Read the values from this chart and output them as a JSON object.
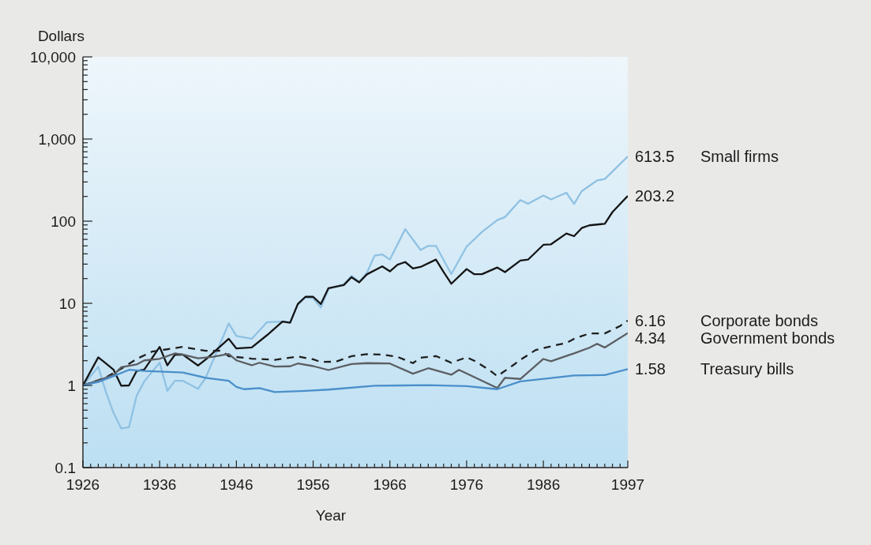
{
  "chart_data": {
    "type": "line",
    "xlabel": "Year",
    "ylabel": "Dollars",
    "log": "y",
    "xlim": [
      1926,
      1997
    ],
    "ylim": [
      0.1,
      10000
    ],
    "xticks": [
      1926,
      {
        "value": 1927,
        "label": null
      },
      {
        "value": 1928,
        "label": null
      },
      {
        "value": 1929,
        "label": null
      },
      {
        "value": 1930,
        "label": null
      },
      {
        "value": 1931,
        "label": null
      },
      {
        "value": 1932,
        "label": null
      },
      {
        "value": 1933,
        "label": null
      },
      {
        "value": 1934,
        "label": null
      },
      {
        "value": 1935,
        "label": null
      },
      1936,
      {
        "value": 1937,
        "label": null
      },
      {
        "value": 1938,
        "label": null
      },
      {
        "value": 1939,
        "label": null
      },
      {
        "value": 1940,
        "label": null
      },
      {
        "value": 1941,
        "label": null
      },
      {
        "value": 1942,
        "label": null
      },
      {
        "value": 1943,
        "label": null
      },
      {
        "value": 1944,
        "label": null
      },
      {
        "value": 1945,
        "label": null
      },
      1946,
      {
        "value": 1947,
        "label": null
      },
      {
        "value": 1948,
        "label": null
      },
      {
        "value": 1949,
        "label": null
      },
      {
        "value": 1950,
        "label": null
      },
      {
        "value": 1951,
        "label": null
      },
      {
        "value": 1952,
        "label": null
      },
      {
        "value": 1953,
        "label": null
      },
      {
        "value": 1954,
        "label": null
      },
      {
        "value": 1955,
        "label": null
      },
      1956,
      {
        "value": 1957,
        "label": null
      },
      {
        "value": 1958,
        "label": null
      },
      {
        "value": 1959,
        "label": null
      },
      {
        "value": 1960,
        "label": null
      },
      {
        "value": 1961,
        "label": null
      },
      {
        "value": 1962,
        "label": null
      },
      {
        "value": 1963,
        "label": null
      },
      {
        "value": 1964,
        "label": null
      },
      {
        "value": 1965,
        "label": null
      },
      1966,
      {
        "value": 1967,
        "label": null
      },
      {
        "value": 1968,
        "label": null
      },
      {
        "value": 1969,
        "label": null
      },
      {
        "value": 1970,
        "label": null
      },
      {
        "value": 1971,
        "label": null
      },
      {
        "value": 1972,
        "label": null
      },
      {
        "value": 1973,
        "label": null
      },
      {
        "value": 1974,
        "label": null
      },
      {
        "value": 1975,
        "label": null
      },
      1976,
      {
        "value": 1977,
        "label": null
      },
      {
        "value": 1978,
        "label": null
      },
      {
        "value": 1979,
        "label": null
      },
      {
        "value": 1980,
        "label": null
      },
      {
        "value": 1981,
        "label": null
      },
      {
        "value": 1982,
        "label": null
      },
      {
        "value": 1983,
        "label": null
      },
      {
        "value": 1984,
        "label": null
      },
      {
        "value": 1985,
        "label": null
      },
      1986,
      {
        "value": 1987,
        "label": null
      },
      {
        "value": 1988,
        "label": null
      },
      {
        "value": 1989,
        "label": null
      },
      {
        "value": 1990,
        "label": null
      },
      {
        "value": 1991,
        "label": null
      },
      {
        "value": 1992,
        "label": null
      },
      {
        "value": 1993,
        "label": null
      },
      {
        "value": 1994,
        "label": null
      },
      {
        "value": 1995,
        "label": null
      },
      {
        "value": 1996,
        "label": null
      },
      1997
    ],
    "yticks": [
      0.1,
      {
        "value": 0.2,
        "label": null
      },
      {
        "value": 0.3,
        "label": null
      },
      {
        "value": 0.4,
        "label": null
      },
      {
        "value": 0.5,
        "label": null
      },
      {
        "value": 0.6,
        "label": null
      },
      {
        "value": 0.7,
        "label": null
      },
      {
        "value": 0.8,
        "label": null
      },
      {
        "value": 0.9,
        "label": null
      },
      1,
      {
        "value": 2,
        "label": null
      },
      {
        "value": 3,
        "label": null
      },
      {
        "value": 4,
        "label": null
      },
      {
        "value": 5,
        "label": null
      },
      {
        "value": 6,
        "label": null
      },
      {
        "value": 7,
        "label": null
      },
      {
        "value": 8,
        "label": null
      },
      {
        "value": 9,
        "label": null
      },
      10,
      {
        "value": 20,
        "label": null
      },
      {
        "value": 30,
        "label": null
      },
      {
        "value": 40,
        "label": null
      },
      {
        "value": 50,
        "label": null
      },
      {
        "value": 60,
        "label": null
      },
      {
        "value": 70,
        "label": null
      },
      {
        "value": 80,
        "label": null
      },
      {
        "value": 90,
        "label": null
      },
      100,
      {
        "value": 200,
        "label": null
      },
      {
        "value": 300,
        "label": null
      },
      {
        "value": 400,
        "label": null
      },
      {
        "value": 500,
        "label": null
      },
      {
        "value": 600,
        "label": null
      },
      {
        "value": 700,
        "label": null
      },
      {
        "value": 800,
        "label": null
      },
      {
        "value": 900,
        "label": null
      },
      {
        "value": 1000,
        "label": "1,000"
      },
      {
        "value": 2000,
        "label": null
      },
      {
        "value": 3000,
        "label": null
      },
      {
        "value": 4000,
        "label": null
      },
      {
        "value": 5000,
        "label": null
      },
      {
        "value": 6000,
        "label": null
      },
      {
        "value": 7000,
        "label": null
      },
      {
        "value": 8000,
        "label": null
      },
      {
        "value": 9000,
        "label": null
      },
      {
        "value": 10000,
        "label": "10,000"
      }
    ],
    "series": [
      {
        "name": "Small firms",
        "color": "#8fc1e3",
        "line_style": "solid",
        "x": [
          1926,
          1928,
          1929,
          1930,
          1931,
          1932,
          1933,
          1934,
          1936,
          1937,
          1938,
          1939,
          1941,
          1942,
          1945,
          1946,
          1948,
          1950,
          1952,
          1953,
          1954,
          1955,
          1956,
          1957,
          1958,
          1960,
          1961,
          1962,
          1963,
          1964,
          1965,
          1966,
          1968,
          1970,
          1971,
          1972,
          1974,
          1976,
          1978,
          1980,
          1981,
          1983,
          1984,
          1986,
          1987,
          1989,
          1990,
          1991,
          1993,
          1994,
          1997
        ],
        "values": [
          1,
          1.69,
          0.83,
          0.46,
          0.3,
          0.31,
          0.75,
          1.12,
          1.9,
          0.86,
          1.14,
          1.14,
          0.91,
          1.24,
          5.7,
          4.0,
          3.7,
          5.9,
          6.0,
          5.9,
          9.6,
          11.8,
          11.5,
          8.9,
          15,
          17.1,
          21.6,
          18.3,
          23.4,
          38,
          39.4,
          34.1,
          80,
          44.6,
          50,
          50,
          22.7,
          49,
          74,
          103,
          112,
          181,
          163,
          205,
          184,
          222,
          162,
          232,
          313,
          326,
          613.5
        ],
        "value_labels": [
          null,
          null,
          null,
          null,
          null,
          null,
          null,
          null,
          null,
          null,
          null,
          null,
          null,
          null,
          null,
          null,
          null,
          null,
          null,
          null,
          null,
          null,
          null,
          null,
          null,
          null,
          null,
          null,
          null,
          null,
          null,
          null,
          null,
          null,
          null,
          null,
          null,
          null,
          null,
          null,
          null,
          null,
          null,
          null,
          null,
          null,
          null,
          null,
          null,
          null,
          "613.5"
        ]
      },
      {
        "color": "#151515",
        "line_style": "solid",
        "x": [
          1926,
          1928,
          1929,
          1930,
          1931,
          1932,
          1933,
          1934,
          1936,
          1937,
          1938,
          1939,
          1941,
          1942,
          1945,
          1946,
          1948,
          1950,
          1952,
          1953,
          1954,
          1955,
          1956,
          1957,
          1958,
          1960,
          1961,
          1962,
          1963,
          1965,
          1966,
          1967,
          1968,
          1969,
          1970,
          1972,
          1973,
          1974,
          1976,
          1977,
          1978,
          1980,
          1981,
          1983,
          1984,
          1986,
          1987,
          1989,
          1990,
          1991,
          1992,
          1994,
          1995,
          1997
        ],
        "values": [
          1,
          2.2,
          1.85,
          1.55,
          0.99,
          1.0,
          1.5,
          1.56,
          2.95,
          1.76,
          2.37,
          2.38,
          1.75,
          2.07,
          3.7,
          2.82,
          2.9,
          4.1,
          6.0,
          5.8,
          9.8,
          12,
          12,
          9.8,
          15.3,
          16.7,
          20.8,
          18,
          22.5,
          28.2,
          24.5,
          29.5,
          31.8,
          26.5,
          27.7,
          34.1,
          24,
          17.3,
          26.1,
          22.6,
          22.6,
          27.3,
          24,
          33.2,
          34,
          51.5,
          52.3,
          70.7,
          65.7,
          82.5,
          89,
          92.9,
          129,
          203.2
        ],
        "value_labels": [
          null,
          null,
          null,
          null,
          null,
          null,
          null,
          null,
          null,
          null,
          null,
          null,
          null,
          null,
          null,
          null,
          null,
          null,
          null,
          null,
          null,
          null,
          null,
          null,
          null,
          null,
          null,
          null,
          null,
          null,
          null,
          null,
          null,
          null,
          null,
          null,
          null,
          null,
          null,
          null,
          null,
          null,
          null,
          null,
          null,
          null,
          null,
          null,
          null,
          null,
          null,
          null,
          null,
          "203.2"
        ]
      },
      {
        "name": "Corporate bonds",
        "color": "#1f1f1f",
        "line_style": "dashed",
        "x": [
          1926,
          1929,
          1931,
          1933,
          1935,
          1939,
          1942,
          1944,
          1945,
          1948,
          1951,
          1954,
          1956,
          1957,
          1959,
          1961,
          1963,
          1965,
          1967,
          1969,
          1970,
          1972,
          1974,
          1976,
          1977,
          1979,
          1980,
          1982,
          1983,
          1985,
          1987,
          1989,
          1990,
          1992,
          1994,
          1996,
          1997
        ],
        "values": [
          1,
          1.25,
          1.6,
          2.1,
          2.58,
          2.95,
          2.64,
          2.65,
          2.27,
          2.12,
          2.05,
          2.25,
          2.08,
          1.93,
          1.95,
          2.27,
          2.4,
          2.38,
          2.23,
          1.87,
          2.17,
          2.28,
          1.89,
          2.2,
          2.0,
          1.53,
          1.3,
          1.75,
          2.05,
          2.7,
          3.0,
          3.3,
          3.7,
          4.3,
          4.3,
          5.3,
          6.16
        ],
        "value_labels": [
          null,
          null,
          null,
          null,
          null,
          null,
          null,
          null,
          null,
          null,
          null,
          null,
          null,
          null,
          null,
          null,
          null,
          null,
          null,
          null,
          null,
          null,
          null,
          null,
          null,
          null,
          null,
          null,
          null,
          null,
          null,
          null,
          null,
          null,
          null,
          null,
          "6.16"
        ]
      },
      {
        "name": "Government bonds",
        "color": "#5b5e63",
        "line_style": "solid",
        "x": [
          1926,
          1928,
          1930,
          1931,
          1933,
          1934,
          1936,
          1938,
          1939,
          1941,
          1943,
          1945,
          1946,
          1948,
          1949,
          1951,
          1953,
          1954,
          1956,
          1958,
          1961,
          1963,
          1966,
          1969,
          1971,
          1974,
          1975,
          1980,
          1981,
          1983,
          1986,
          1987,
          1989,
          1990,
          1992,
          1993,
          1994,
          1997
        ],
        "values": [
          1,
          1.15,
          1.34,
          1.67,
          1.8,
          2.02,
          2.11,
          2.46,
          2.38,
          2.14,
          2.24,
          2.42,
          2.02,
          1.76,
          1.89,
          1.7,
          1.71,
          1.85,
          1.72,
          1.54,
          1.82,
          1.87,
          1.85,
          1.39,
          1.62,
          1.35,
          1.55,
          0.93,
          1.24,
          1.2,
          2.1,
          1.97,
          2.29,
          2.46,
          2.88,
          3.22,
          2.89,
          4.34
        ],
        "value_labels": [
          null,
          null,
          null,
          null,
          null,
          null,
          null,
          null,
          null,
          null,
          null,
          null,
          null,
          null,
          null,
          null,
          null,
          null,
          null,
          null,
          null,
          null,
          null,
          null,
          null,
          null,
          null,
          null,
          null,
          null,
          null,
          null,
          null,
          null,
          null,
          null,
          null,
          "4.34"
        ]
      },
      {
        "name": "Treasury bills",
        "color": "#4a8fca",
        "line_style": "solid",
        "x": [
          1926,
          1928,
          1930,
          1932,
          1934,
          1939,
          1942,
          1945,
          1946,
          1947,
          1949,
          1951,
          1955,
          1958,
          1964,
          1971,
          1976,
          1980,
          1983,
          1987,
          1990,
          1994,
          1997
        ],
        "values": [
          1,
          1.1,
          1.3,
          1.55,
          1.5,
          1.44,
          1.24,
          1.14,
          0.96,
          0.9,
          0.93,
          0.83,
          0.86,
          0.89,
          0.99,
          1.01,
          0.98,
          0.9,
          1.12,
          1.23,
          1.32,
          1.34,
          1.58
        ],
        "value_labels": [
          null,
          null,
          null,
          null,
          null,
          null,
          null,
          null,
          null,
          null,
          null,
          null,
          null,
          null,
          null,
          null,
          null,
          null,
          null,
          null,
          null,
          null,
          "1.58"
        ]
      }
    ]
  }
}
